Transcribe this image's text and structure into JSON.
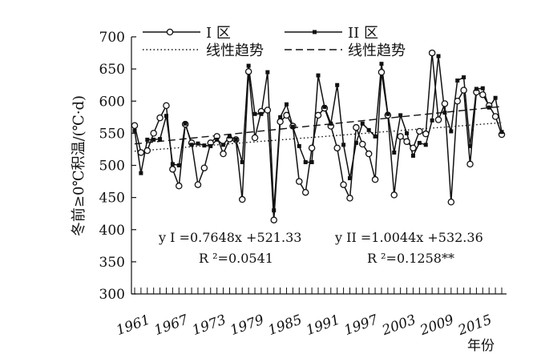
{
  "chart_data": {
    "type": "line",
    "ylabel": "冬前≥0℃积温/(℃·d)",
    "xlabel": "年份",
    "ylim": [
      300,
      700
    ],
    "yticks": [
      300,
      350,
      400,
      450,
      500,
      550,
      600,
      650,
      700
    ],
    "xlim": [
      1961,
      2019
    ],
    "xticks": [
      1961,
      1967,
      1973,
      1979,
      1985,
      1991,
      1997,
      2003,
      2009,
      2015
    ],
    "grid": false,
    "legend_position": "top",
    "legend": {
      "s1": "I 区",
      "s2": "II 区",
      "trend1": "线性趋势",
      "trend2": "线性趋势"
    },
    "annotations": {
      "eq1": "y I =0.7648x +521.33",
      "r1": "R ²=0.0541",
      "eq2": "y II =1.0044x +532.36",
      "r2": "R ²=0.1258**"
    },
    "x": [
      1961,
      1962,
      1963,
      1964,
      1965,
      1966,
      1967,
      1968,
      1969,
      1970,
      1971,
      1972,
      1973,
      1974,
      1975,
      1976,
      1977,
      1978,
      1979,
      1980,
      1981,
      1982,
      1983,
      1984,
      1985,
      1986,
      1987,
      1988,
      1989,
      1990,
      1991,
      1992,
      1993,
      1994,
      1995,
      1996,
      1997,
      1998,
      1999,
      2000,
      2001,
      2002,
      2003,
      2004,
      2005,
      2006,
      2007,
      2008,
      2009,
      2010,
      2011,
      2012,
      2013,
      2014,
      2015,
      2016,
      2017,
      2018,
      2019
    ],
    "series": [
      {
        "name": "I 区",
        "marker": "circle",
        "values": [
          562,
          520,
          523,
          550,
          574,
          593,
          494,
          468,
          564,
          535,
          470,
          496,
          535,
          545,
          518,
          541,
          540,
          447,
          646,
          543,
          584,
          586,
          415,
          568,
          578,
          561,
          475,
          458,
          527,
          578,
          589,
          561,
          527,
          470,
          449,
          559,
          533,
          518,
          478,
          645,
          578,
          454,
          545,
          537,
          527,
          553,
          549,
          675,
          571,
          596,
          443,
          600,
          617,
          502,
          614,
          610,
          593,
          576,
          548
        ]
      },
      {
        "name": "II 区",
        "marker": "square",
        "values": [
          554,
          488,
          540,
          540,
          541,
          577,
          502,
          500,
          565,
          532,
          534,
          531,
          530,
          540,
          532,
          545,
          540,
          505,
          655,
          580,
          580,
          645,
          430,
          575,
          595,
          560,
          530,
          505,
          505,
          640,
          591,
          565,
          625,
          532,
          480,
          535,
          565,
          555,
          545,
          658,
          580,
          520,
          578,
          550,
          515,
          535,
          532,
          570,
          670,
          582,
          553,
          632,
          637,
          530,
          619,
          620,
          590,
          605,
          552
        ]
      }
    ],
    "trend_lines": [
      {
        "name": "线性趋势",
        "style": "dotted",
        "slope": 0.7648,
        "intercept": 521.33
      },
      {
        "name": "线性趋势",
        "style": "dashed",
        "slope": 1.0044,
        "intercept": 532.36
      }
    ]
  }
}
